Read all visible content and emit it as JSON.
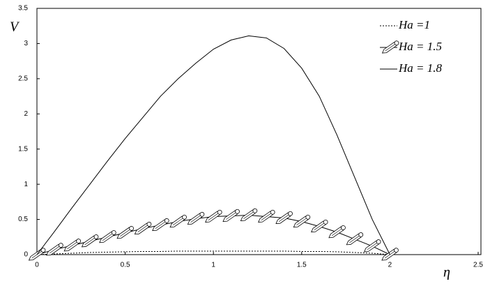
{
  "chart_data": {
    "type": "line",
    "xlabel": "η",
    "ylabel": "V",
    "x": [
      0,
      0.1,
      0.2,
      0.3,
      0.4,
      0.5,
      0.6,
      0.7,
      0.8,
      0.9,
      1.0,
      1.1,
      1.2,
      1.3,
      1.4,
      1.5,
      1.6,
      1.7,
      1.8,
      1.9,
      2.0
    ],
    "series": [
      {
        "name": "Ha =1",
        "color": "#000000",
        "line_style": "dotted",
        "values": [
          0,
          0.01,
          0.02,
          0.03,
          0.035,
          0.04,
          0.045,
          0.045,
          0.05,
          0.05,
          0.05,
          0.05,
          0.05,
          0.05,
          0.05,
          0.045,
          0.045,
          0.04,
          0.03,
          0.02,
          0
        ]
      },
      {
        "name": "Ha = 1.5",
        "color": "#000000",
        "line_style": "solid",
        "marker": "pencil",
        "values": [
          0,
          0.07,
          0.13,
          0.19,
          0.25,
          0.31,
          0.37,
          0.42,
          0.47,
          0.51,
          0.54,
          0.55,
          0.56,
          0.54,
          0.52,
          0.47,
          0.4,
          0.32,
          0.22,
          0.12,
          0
        ]
      },
      {
        "name": "Ha = 1.8",
        "color": "#000000",
        "line_style": "solid",
        "values": [
          0,
          0.33,
          0.67,
          1.0,
          1.33,
          1.65,
          1.95,
          2.25,
          2.5,
          2.72,
          2.92,
          3.05,
          3.11,
          3.08,
          2.93,
          2.65,
          2.25,
          1.7,
          1.1,
          0.5,
          0
        ]
      }
    ],
    "xlim": [
      0,
      2.5
    ],
    "xticks": [
      0,
      0.5,
      1,
      1.5,
      2,
      2.5
    ],
    "ylim": [
      0,
      3.5
    ],
    "yticks": [
      0,
      0.5,
      1,
      1.5,
      2,
      2.5,
      3,
      3.5
    ],
    "grid": false,
    "legend": "top-right"
  }
}
